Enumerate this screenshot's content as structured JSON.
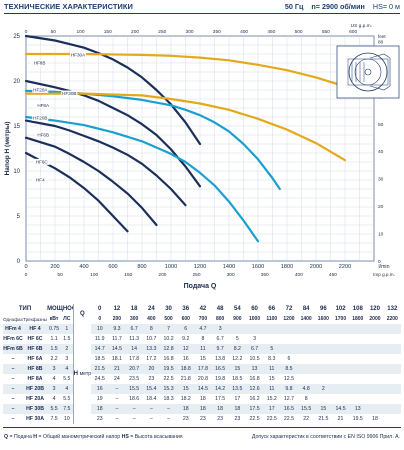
{
  "header": {
    "title": "ТЕХНИЧЕСКИЕ ХАРАКТЕРИСТИКИ",
    "freq": "50 Гц",
    "speed": "n= 2900 об/мин",
    "hs": "HS= 0 м"
  },
  "chart_data": {
    "type": "line",
    "ylabel": "Напор H (метры)",
    "xlabel": "Подача Q",
    "x_unit_primary": "l/min",
    "x_unit_secondary_top": "US g.p.m.",
    "x_unit_secondary_bottom": "Imp g.p.m.",
    "y_unit_secondary": "feet",
    "xlim": [
      0,
      2400
    ],
    "ylim": [
      0,
      25
    ],
    "x_ticks": [
      0,
      200,
      400,
      600,
      800,
      1000,
      1200,
      1400,
      1600,
      1800,
      2000,
      2200
    ],
    "y_ticks": [
      0,
      5,
      10,
      15,
      20,
      25
    ],
    "top_axis_ticks": [
      "0",
      "50",
      "100",
      "150",
      "200",
      "250",
      "300",
      "350",
      "400",
      "450",
      "500",
      "550",
      "600"
    ],
    "bottom_imp_ticks": [
      "0",
      "50",
      "100",
      "150",
      "200",
      "250",
      "300",
      "350",
      "400",
      "450"
    ],
    "right_feet_ticks": [
      "0",
      "10",
      "20",
      "30",
      "40",
      "50",
      "60",
      "70",
      "80"
    ],
    "series": [
      {
        "name": "HF 4",
        "color": "#1a2f5a",
        "x": [
          0,
          200,
          300,
          400,
          500,
          600,
          700
        ],
        "y": [
          12,
          10.3,
          9.3,
          8.1,
          6.7,
          5.0,
          3.3
        ]
      },
      {
        "name": "HF 6C",
        "color": "#1a2f5a",
        "x": [
          0,
          200,
          300,
          400,
          500,
          600,
          700,
          800,
          900
        ],
        "y": [
          13.7,
          12.7,
          11.9,
          11.0,
          10.0,
          8.8,
          7.5,
          5.9,
          4.0
        ]
      },
      {
        "name": "HF 6B",
        "color": "#1a2f5a",
        "x": [
          0,
          200,
          300,
          400,
          500,
          600,
          700,
          800,
          900,
          1000,
          1100
        ],
        "y": [
          15.6,
          15.0,
          14.5,
          13.9,
          13.3,
          12.6,
          11.8,
          10.8,
          9.5,
          8.0,
          6.2
        ]
      },
      {
        "name": "HF 8B",
        "color": "#1a2f5a",
        "x": [
          0,
          200,
          300,
          400,
          500,
          600,
          700,
          800,
          900,
          1000,
          1100,
          1200
        ],
        "y": [
          20.0,
          19.3,
          18.9,
          18.4,
          17.8,
          17.0,
          16.2,
          15.2,
          14.0,
          12.4,
          10.5,
          8.3
        ]
      },
      {
        "name": "HF 8A",
        "color": "#1a2f5a",
        "x": [
          0,
          200,
          300,
          400,
          500,
          600,
          700,
          800,
          900,
          1000,
          1100,
          1200
        ],
        "y": [
          25.0,
          24.5,
          24.1,
          23.7,
          23.1,
          22.4,
          21.5,
          20.4,
          19.0,
          17.4,
          15.4,
          13.0
        ]
      },
      {
        "name": "HF 20B",
        "color": "#1aa0cf",
        "x": [
          0,
          200,
          400,
          600,
          800,
          1000,
          1100,
          1200,
          1300,
          1400,
          1500,
          1600
        ],
        "y": [
          16.0,
          15.6,
          15.1,
          14.3,
          13.3,
          11.9,
          11.0,
          9.8,
          8.4,
          6.6,
          4.5,
          2.2
        ]
      },
      {
        "name": "HF 20A",
        "color": "#1aa0cf",
        "x": [
          0,
          200,
          400,
          600,
          800,
          1000,
          1100,
          1200,
          1300,
          1400,
          1500,
          1600,
          1700,
          1750
        ],
        "y": [
          18.9,
          18.8,
          18.6,
          18.3,
          17.9,
          17.3,
          16.8,
          16.2,
          15.4,
          14.4,
          13.0,
          11.3,
          9.2,
          8.0
        ]
      },
      {
        "name": "HF 30B",
        "color": "#e3a81c",
        "x": [
          0,
          400,
          800,
          1000,
          1200,
          1400,
          1600,
          1800,
          2000,
          2200
        ],
        "y": [
          18.6,
          18.6,
          18.4,
          18.0,
          17.5,
          16.8,
          15.8,
          14.6,
          13.1,
          11.2
        ]
      },
      {
        "name": "HF 30A",
        "color": "#e3a81c",
        "x": [
          0,
          400,
          800,
          1000,
          1200,
          1400,
          1600,
          1800,
          2000,
          2200
        ],
        "y": [
          23.0,
          23.0,
          22.9,
          22.8,
          22.6,
          22.3,
          21.8,
          21.2,
          20.4,
          19.4
        ]
      }
    ],
    "curve_labels": [
      "HF8A",
      "HF8B",
      "HF8A",
      "HF6B",
      "HF6C",
      "HF4",
      "HF30A",
      "HF20A",
      "HF30B",
      "HF20B"
    ]
  },
  "table": {
    "header": {
      "type": "ТИП",
      "power": "МОЩНОСТЬ",
      "single_phase": "Однофазный",
      "three_phase": "Трехфазный",
      "kw": "кВт",
      "hp": "ЛС",
      "q_label": "Q",
      "m3h": "м³/ч",
      "lmin": "л/мин",
      "h_label": "H",
      "h_unit": "метры"
    },
    "m3h_values": [
      "0",
      "12",
      "18",
      "24",
      "30",
      "36",
      "42",
      "48",
      "54",
      "60",
      "66",
      "72",
      "84",
      "96",
      "102",
      "108",
      "120",
      "132"
    ],
    "lmin_values": [
      "0",
      "200",
      "300",
      "400",
      "500",
      "600",
      "700",
      "800",
      "900",
      "1000",
      "1100",
      "1200",
      "1400",
      "1600",
      "1700",
      "1800",
      "2000",
      "2200"
    ],
    "rows": [
      {
        "single": "HFm 4",
        "three": "HF 4",
        "kw": "0.75",
        "hp": "1",
        "h": [
          "10",
          "9.3",
          "6.7",
          "8",
          "7",
          "6",
          "4.7",
          "3",
          "",
          "",
          "",
          "",
          "",
          "",
          "",
          "",
          "",
          ""
        ]
      },
      {
        "single": "HFm 6C",
        "three": "HF 6C",
        "kw": "1.1",
        "hp": "1.5",
        "h": [
          "11.9",
          "11.7",
          "11.3",
          "10.7",
          "10.2",
          "9.2",
          "8",
          "6.7",
          "5",
          "3",
          "",
          "",
          "",
          "",
          "",
          "",
          "",
          ""
        ]
      },
      {
        "single": "HFm 6B",
        "three": "HF 6B",
        "kw": "1.5",
        "hp": "2",
        "h": [
          "14.7",
          "14.5",
          "14",
          "13.3",
          "12.8",
          "12",
          "11",
          "9.7",
          "8.2",
          "6.7",
          "5",
          "",
          "",
          "",
          "",
          "",
          "",
          ""
        ]
      },
      {
        "single": "–",
        "three": "HF 6A",
        "kw": "2.2",
        "hp": "3",
        "h": [
          "18.5",
          "18.1",
          "17.8",
          "17.2",
          "16.8",
          "16",
          "15",
          "13.8",
          "12.2",
          "10.5",
          "8.3",
          "6",
          "",
          "",
          "",
          "",
          "",
          ""
        ]
      },
      {
        "single": "–",
        "three": "HF 8B",
        "kw": "3",
        "hp": "4",
        "h": [
          "21.5",
          "21",
          "20.7",
          "20",
          "19.5",
          "18.8",
          "17.8",
          "16.5",
          "15",
          "13",
          "11",
          "8.5",
          "",
          "",
          "",
          "",
          "",
          ""
        ]
      },
      {
        "single": "–",
        "three": "HF 8A",
        "kw": "4",
        "hp": "5.5",
        "h": [
          "24.5",
          "24",
          "23.5",
          "23",
          "22.5",
          "21.8",
          "20.8",
          "19.8",
          "18.5",
          "16.8",
          "15",
          "12.5",
          "",
          "",
          "",
          "",
          "",
          ""
        ]
      },
      {
        "single": "–",
        "three": "HF 20B",
        "kw": "3",
        "hp": "4",
        "h": [
          "16",
          "–",
          "15.5",
          "15.4",
          "15.3",
          "15",
          "14.5",
          "14.2",
          "13.5",
          "12.6",
          "11",
          "9.8",
          "4.8",
          "2",
          "",
          "",
          "",
          ""
        ]
      },
      {
        "single": "–",
        "three": "HF 20A",
        "kw": "4",
        "hp": "5.5",
        "h": [
          "19",
          "–",
          "18.6",
          "18.4",
          "18.3",
          "18.2",
          "18",
          "17.5",
          "17",
          "16.2",
          "15.2",
          "12.7",
          "8",
          "",
          "",
          "",
          "",
          ""
        ]
      },
      {
        "single": "–",
        "three": "HF 30B",
        "kw": "5.5",
        "hp": "7.5",
        "h": [
          "18",
          "–",
          "–",
          "–",
          "–",
          "18",
          "18",
          "18",
          "18",
          "17.5",
          "17",
          "16.5",
          "15.5",
          "15",
          "14.5",
          "13",
          "",
          ""
        ]
      },
      {
        "single": "–",
        "three": "HF 30A",
        "kw": "7.5",
        "hp": "10",
        "h": [
          "23",
          "–",
          "–",
          "–",
          "–",
          "23",
          "23",
          "23",
          "23",
          "22.5",
          "22.5",
          "22.5",
          "22",
          "21.5",
          "21",
          "19.5",
          "18",
          ""
        ]
      }
    ]
  },
  "footer": {
    "q_note": "Q",
    "q_desc": " = Подача  ",
    "h_note": "H",
    "h_desc": " = Общий манометрический напор  ",
    "hs_note": "HS",
    "hs_desc": " = Высота всасывания",
    "right": "Допуск характеристик в соответствии с EN ISO 9906 Прил. A."
  }
}
